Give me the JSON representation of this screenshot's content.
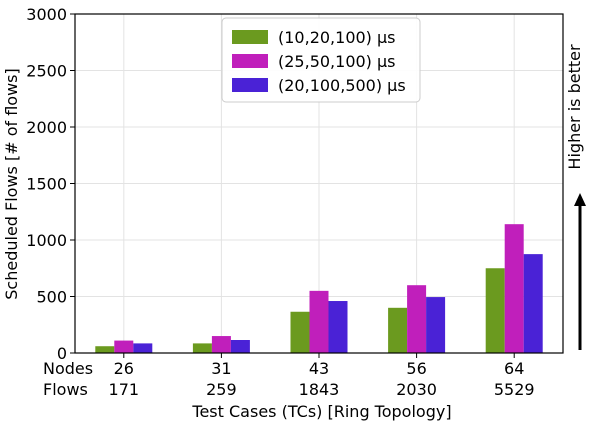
{
  "chart_data": {
    "type": "bar",
    "title": "",
    "xlabel": "Test Cases (TCs) [Ring Topology]",
    "ylabel": "Scheduled Flows [# of flows]",
    "ylim": [
      0,
      3000
    ],
    "yticks": [
      0,
      500,
      1000,
      1500,
      2000,
      2500,
      3000
    ],
    "grid": true,
    "legend_position": "top-center",
    "row_labels": {
      "nodes": "Nodes",
      "flows": "Flows"
    },
    "categories": [
      {
        "nodes": "26",
        "flows": "171"
      },
      {
        "nodes": "31",
        "flows": "259"
      },
      {
        "nodes": "43",
        "flows": "1843"
      },
      {
        "nodes": "56",
        "flows": "2030"
      },
      {
        "nodes": "64",
        "flows": "5529"
      }
    ],
    "series": [
      {
        "name": "(10,20,100) μs",
        "color": "#6b9a1f",
        "values": [
          60,
          85,
          365,
          400,
          750
        ]
      },
      {
        "name": "(25,50,100) μs",
        "color": "#c01fbb",
        "values": [
          110,
          150,
          550,
          600,
          1140
        ]
      },
      {
        "name": "(20,100,500) μs",
        "color": "#4a22d6",
        "values": [
          85,
          115,
          460,
          495,
          875
        ]
      }
    ],
    "annotation": {
      "text": "Higher is better"
    }
  }
}
